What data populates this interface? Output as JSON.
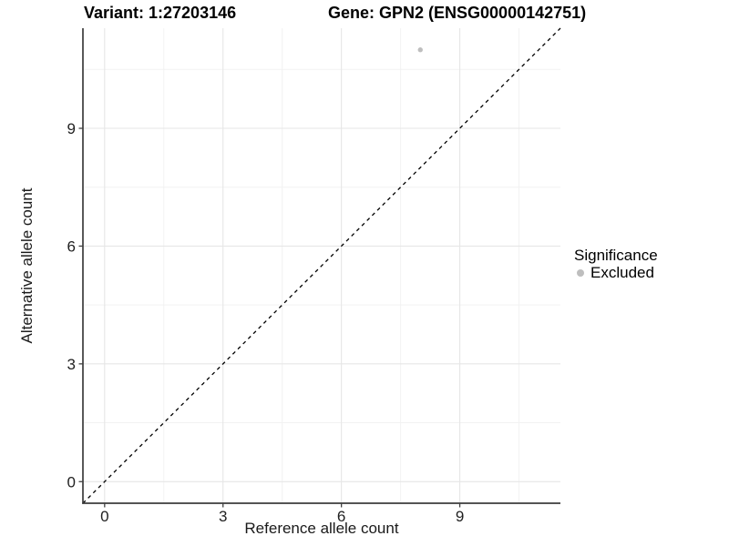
{
  "titles": {
    "variant": "Variant: 1:27203146",
    "gene": "Gene: GPN2 (ENSG00000142751)"
  },
  "chart_data": {
    "type": "scatter",
    "title_left": "Variant: 1:27203146",
    "title_right": "Gene: GPN2 (ENSG00000142751)",
    "xlabel": "Reference allele count",
    "ylabel": "Alternative allele count",
    "xlim": [
      -0.55,
      11.55
    ],
    "ylim": [
      -0.55,
      11.55
    ],
    "xticks": [
      0,
      3,
      6,
      9
    ],
    "yticks": [
      0,
      3,
      6,
      9
    ],
    "minor_ticks_x": [
      1.5,
      4.5,
      7.5,
      10.5
    ],
    "minor_ticks_y": [
      1.5,
      4.5,
      7.5,
      10.5
    ],
    "grid": true,
    "points": [
      {
        "x": 8,
        "y": 11,
        "series": "Excluded"
      }
    ],
    "reference_line": {
      "type": "identity",
      "from": -0.55,
      "to": 11.55,
      "style": "dashed"
    },
    "legend": {
      "position": "right",
      "title": "Significance",
      "entries": [
        {
          "label": "Excluded",
          "color": "#bebebe",
          "marker": "circle"
        }
      ]
    },
    "colors": {
      "point": "#bebebe",
      "grid_major": "#e6e6e6",
      "grid_minor": "#f2f2f2",
      "axis_line": "#3c3c3c",
      "tick_mark": "#404040",
      "tick_label": "#1f1f1f",
      "diagonal": "#000000"
    }
  }
}
